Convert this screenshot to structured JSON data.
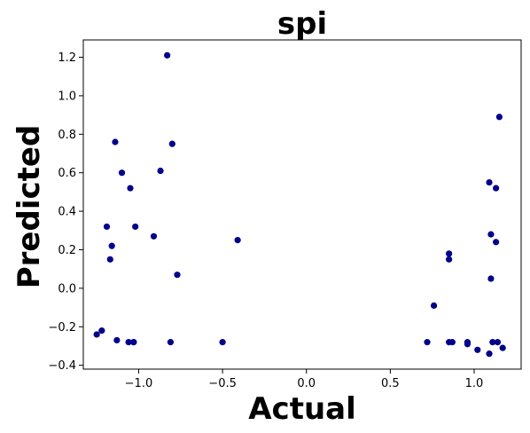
{
  "chart_data": {
    "type": "scatter",
    "title": "spi",
    "xlabel": "Actual",
    "ylabel": "Predicted",
    "xlim": [
      -1.33,
      1.28
    ],
    "ylim": [
      -0.42,
      1.29
    ],
    "xticks": [
      -1.0,
      -0.5,
      0.0,
      0.5,
      1.0
    ],
    "xtick_labels": [
      "−1.0",
      "−0.5",
      "0.0",
      "0.5",
      "1.0"
    ],
    "yticks": [
      -0.4,
      -0.2,
      0.0,
      0.2,
      0.4,
      0.6,
      0.8,
      1.0,
      1.2
    ],
    "ytick_labels": [
      "−0.4",
      "−0.2",
      "0.0",
      "0.2",
      "0.4",
      "0.6",
      "0.8",
      "1.0",
      "1.2"
    ],
    "grid": false,
    "point_color": "#00008b",
    "series": [
      {
        "x": [
          -1.25,
          -1.22,
          -1.19,
          -1.17,
          -1.16,
          -1.14,
          -1.13,
          -1.1,
          -1.06,
          -1.05,
          -1.03,
          -1.03,
          -1.02,
          -0.91,
          -0.87,
          -0.83,
          -0.81,
          -0.8,
          -0.77,
          -0.5,
          -0.41,
          0.72,
          0.76,
          0.85,
          0.85,
          0.85,
          0.87,
          0.96,
          0.96,
          1.02,
          1.09,
          1.09,
          1.1,
          1.1,
          1.11,
          1.13,
          1.13,
          1.14,
          1.15,
          1.17
        ],
        "y": [
          -0.24,
          -0.22,
          0.32,
          0.15,
          0.22,
          0.76,
          -0.27,
          0.6,
          -0.28,
          0.52,
          -0.28,
          -0.28,
          0.32,
          0.27,
          0.61,
          1.21,
          -0.28,
          0.75,
          0.07,
          -0.28,
          0.25,
          -0.28,
          -0.09,
          0.18,
          0.15,
          -0.28,
          -0.28,
          -0.28,
          -0.29,
          -0.32,
          -0.34,
          0.55,
          0.28,
          0.05,
          -0.28,
          0.24,
          0.52,
          -0.28,
          0.89,
          -0.31
        ]
      }
    ]
  }
}
